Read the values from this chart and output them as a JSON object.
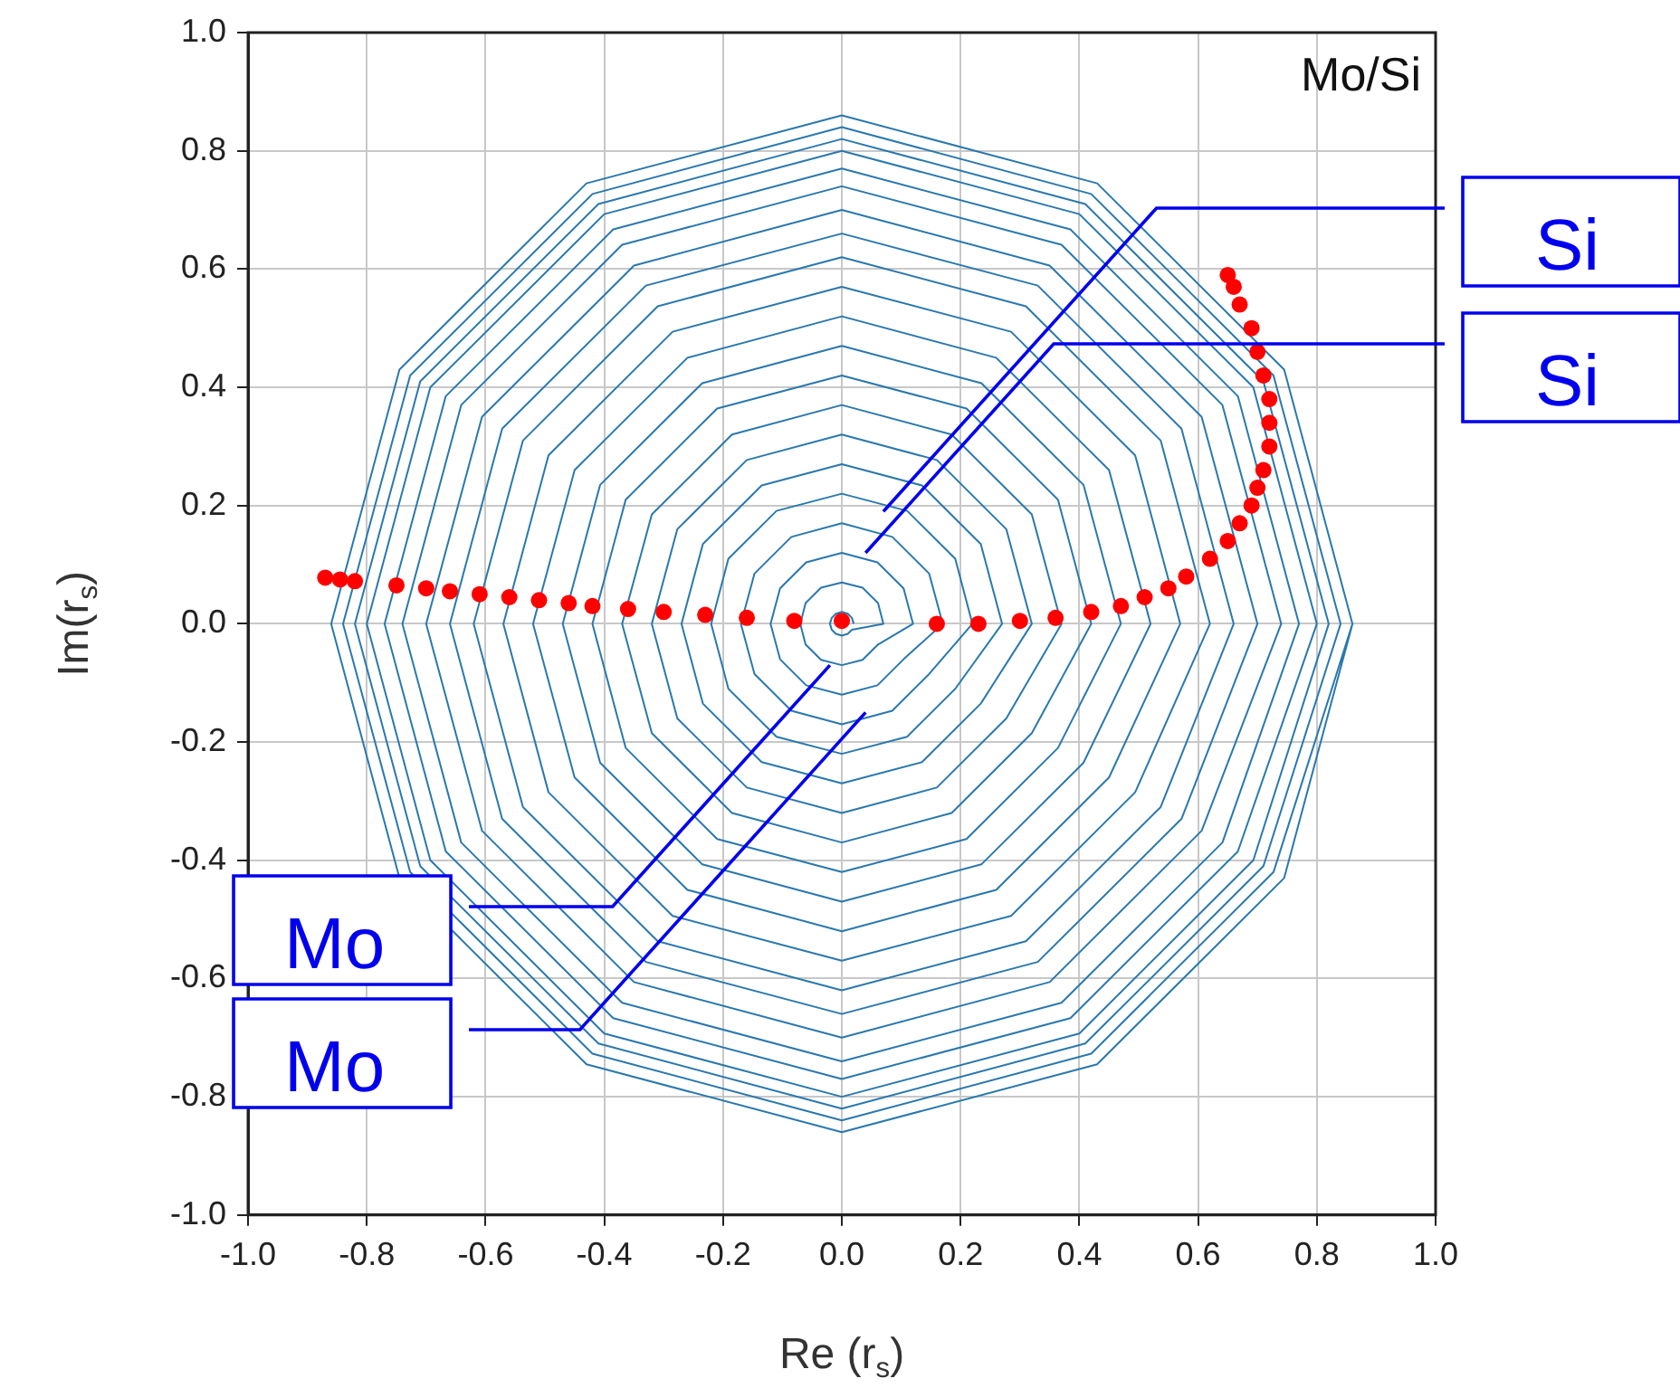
{
  "chart_data": {
    "type": "line",
    "xlabel": "Re (r$_{s}$)",
    "ylabel": "Im(r$_{s}$)",
    "xlim": [
      -1,
      1
    ],
    "ylim": [
      -1,
      1
    ],
    "xticks": [
      {
        "value": -1,
        "label": "-1.0"
      },
      -0.8,
      -0.6,
      -0.4,
      -0.2,
      {
        "value": 0,
        "label": "0.0"
      },
      0.2,
      0.4,
      0.6,
      0.8,
      {
        "value": 1,
        "label": "1.0"
      }
    ],
    "yticks": [
      {
        "value": -1,
        "label": "-1.0"
      },
      -0.8,
      -0.6,
      -0.4,
      -0.2,
      {
        "value": 0,
        "label": "0.0"
      },
      0.2,
      0.4,
      0.6,
      0.8,
      {
        "value": 1,
        "label": "1.0"
      }
    ],
    "grid": true,
    "legend": false,
    "annotations": [
      "Mo/Si",
      {
        "text": "Si",
        "x": 0.07,
        "y": 0.19
      },
      {
        "text": "Si",
        "x": 0.04,
        "y": 0.12
      },
      {
        "text": "Mo",
        "x": -0.02,
        "y": -0.07
      },
      {
        "text": "Mo",
        "x": 0.04,
        "y": -0.15
      }
    ],
    "series": [
      {
        "color": "#2a78ad",
        "line_style": "solid",
        "marker": "none",
        "x": [
          0.02,
          0.017,
          0.01,
          0,
          -0.01,
          -0.017,
          -0.02,
          -0.017,
          -0.01,
          0,
          0.01,
          0.017,
          0.07,
          0.061,
          0.035,
          0,
          -0.035,
          -0.061,
          -0.07,
          -0.061,
          -0.035,
          0,
          0.035,
          0.061,
          0.12,
          0.104,
          0.06,
          0,
          -0.06,
          -0.104,
          -0.12,
          -0.104,
          -0.06,
          0,
          0.06,
          0.104,
          0.17,
          0.147,
          0.085,
          0,
          -0.085,
          -0.147,
          -0.17,
          -0.147,
          -0.085,
          0,
          0.085,
          0.147,
          0.22,
          0.191,
          0.11,
          0,
          -0.11,
          -0.191,
          -0.22,
          -0.191,
          -0.11,
          0,
          0.11,
          0.191,
          0.27,
          0.234,
          0.135,
          0,
          -0.135,
          -0.234,
          -0.27,
          -0.234,
          -0.135,
          0,
          0.135,
          0.234,
          0.32,
          0.277,
          0.16,
          0,
          -0.16,
          -0.277,
          -0.32,
          -0.277,
          -0.16,
          0,
          0.16,
          0.277,
          0.37,
          0.32,
          0.185,
          0,
          -0.185,
          -0.32,
          -0.37,
          -0.32,
          -0.185,
          0,
          0.185,
          0.32,
          0.42,
          0.364,
          0.21,
          0,
          -0.21,
          -0.364,
          -0.42,
          -0.364,
          -0.21,
          0,
          0.21,
          0.364,
          0.47,
          0.407,
          0.235,
          0,
          -0.235,
          -0.407,
          -0.47,
          -0.407,
          -0.235,
          0,
          0.235,
          0.407,
          0.52,
          0.45,
          0.26,
          0,
          -0.26,
          -0.45,
          -0.52,
          -0.45,
          -0.26,
          0,
          0.26,
          0.45,
          0.57,
          0.494,
          0.285,
          0,
          -0.285,
          -0.494,
          -0.57,
          -0.494,
          -0.285,
          0,
          0.285,
          0.494,
          0.62,
          0.537,
          0.31,
          0,
          -0.31,
          -0.537,
          -0.62,
          -0.537,
          -0.31,
          0,
          0.31,
          0.537,
          0.66,
          0.572,
          0.33,
          0,
          -0.33,
          -0.572,
          -0.66,
          -0.572,
          -0.33,
          0,
          0.33,
          0.572,
          0.7,
          0.606,
          0.35,
          0,
          -0.35,
          -0.606,
          -0.7,
          -0.606,
          -0.35,
          0,
          0.35,
          0.606,
          0.74,
          0.641,
          0.37,
          0,
          -0.37,
          -0.641,
          -0.74,
          -0.641,
          -0.37,
          0,
          0.37,
          0.641,
          0.77,
          0.667,
          0.385,
          0,
          -0.385,
          -0.667,
          -0.77,
          -0.667,
          -0.385,
          0,
          0.385,
          0.667,
          0.8,
          0.693,
          0.4,
          0,
          -0.4,
          -0.693,
          -0.8,
          -0.693,
          -0.4,
          0,
          0.4,
          0.693,
          0.82,
          0.71,
          0.41,
          0,
          -0.41,
          -0.71,
          -0.82,
          -0.71,
          -0.41,
          0,
          0.41,
          0.71,
          0.84,
          0.727,
          0.42,
          0,
          -0.42,
          -0.727,
          -0.84,
          -0.727,
          -0.42,
          0,
          0.42,
          0.727,
          0.86,
          0.745,
          0.43,
          0,
          -0.43,
          -0.745,
          -0.86,
          -0.745,
          -0.43,
          0,
          0.43,
          0.745,
          0.86
        ],
        "values": [
          0,
          0.01,
          0.017,
          0.02,
          0.017,
          0.01,
          0,
          -0.01,
          -0.017,
          -0.02,
          -0.017,
          -0.01,
          0,
          0.035,
          0.061,
          0.07,
          0.061,
          0.035,
          0,
          -0.035,
          -0.061,
          -0.07,
          -0.061,
          -0.035,
          0,
          0.06,
          0.104,
          0.12,
          0.104,
          0.06,
          0,
          -0.06,
          -0.104,
          -0.12,
          -0.104,
          -0.06,
          0,
          0.085,
          0.147,
          0.17,
          0.147,
          0.085,
          0,
          -0.085,
          -0.147,
          -0.17,
          -0.147,
          -0.085,
          0,
          0.11,
          0.191,
          0.22,
          0.191,
          0.11,
          0,
          -0.11,
          -0.191,
          -0.22,
          -0.191,
          -0.11,
          0,
          0.135,
          0.234,
          0.27,
          0.234,
          0.135,
          0,
          -0.135,
          -0.234,
          -0.27,
          -0.234,
          -0.135,
          0,
          0.16,
          0.277,
          0.32,
          0.277,
          0.16,
          0,
          -0.16,
          -0.277,
          -0.32,
          -0.277,
          -0.16,
          0,
          0.185,
          0.32,
          0.37,
          0.32,
          0.185,
          0,
          -0.185,
          -0.32,
          -0.37,
          -0.32,
          -0.185,
          0,
          0.21,
          0.364,
          0.42,
          0.364,
          0.21,
          0,
          -0.21,
          -0.364,
          -0.42,
          -0.364,
          -0.21,
          0,
          0.235,
          0.407,
          0.47,
          0.407,
          0.235,
          0,
          -0.235,
          -0.407,
          -0.47,
          -0.407,
          -0.235,
          0,
          0.26,
          0.45,
          0.52,
          0.45,
          0.26,
          0,
          -0.26,
          -0.45,
          -0.52,
          -0.45,
          -0.26,
          0,
          0.285,
          0.494,
          0.57,
          0.494,
          0.285,
          0,
          -0.285,
          -0.494,
          -0.57,
          -0.494,
          -0.285,
          0,
          0.31,
          0.537,
          0.62,
          0.537,
          0.31,
          0,
          -0.31,
          -0.537,
          -0.62,
          -0.537,
          -0.31,
          0,
          0.33,
          0.572,
          0.66,
          0.572,
          0.33,
          0,
          -0.33,
          -0.572,
          -0.66,
          -0.572,
          -0.33,
          0,
          0.35,
          0.606,
          0.7,
          0.606,
          0.35,
          0,
          -0.35,
          -0.606,
          -0.7,
          -0.606,
          -0.35,
          0,
          0.37,
          0.641,
          0.74,
          0.641,
          0.37,
          0,
          -0.37,
          -0.641,
          -0.74,
          -0.641,
          -0.37,
          0,
          0.385,
          0.667,
          0.77,
          0.667,
          0.385,
          0,
          -0.385,
          -0.667,
          -0.77,
          -0.667,
          -0.385,
          0,
          0.4,
          0.693,
          0.8,
          0.693,
          0.4,
          0,
          -0.4,
          -0.693,
          -0.8,
          -0.693,
          -0.4,
          0,
          0.41,
          0.71,
          0.82,
          0.71,
          0.41,
          0,
          -0.41,
          -0.71,
          -0.82,
          -0.71,
          -0.41,
          0,
          0.42,
          0.727,
          0.84,
          0.727,
          0.42,
          0,
          -0.42,
          -0.727,
          -0.84,
          -0.727,
          -0.42,
          0,
          0.43,
          0.745,
          0.86,
          0.745,
          0.43,
          0,
          -0.43,
          -0.745,
          -0.86,
          -0.745,
          -0.43,
          0
        ]
      },
      {
        "type": "scatter",
        "color": "#ff0000",
        "marker": "circle",
        "x": [
          -0.87,
          -0.845,
          -0.82,
          -0.75,
          -0.7,
          -0.66,
          -0.61,
          -0.56,
          -0.51,
          -0.46,
          -0.42,
          -0.36,
          -0.3,
          -0.23,
          -0.16,
          -0.08,
          0.0,
          0.16,
          0.23,
          0.3,
          0.36,
          0.42,
          0.47,
          0.51,
          0.55,
          0.58,
          0.62,
          0.65,
          0.67,
          0.69,
          0.7,
          0.71,
          0.72,
          0.72,
          0.72,
          0.71,
          0.7,
          0.69,
          0.67,
          0.66,
          0.65
        ],
        "values": [
          0.078,
          0.075,
          0.072,
          0.065,
          0.06,
          0.055,
          0.05,
          0.045,
          0.04,
          0.035,
          0.03,
          0.025,
          0.02,
          0.015,
          0.01,
          0.005,
          0.005,
          0.0,
          0.0,
          0.005,
          0.01,
          0.02,
          0.03,
          0.045,
          0.06,
          0.08,
          0.11,
          0.14,
          0.17,
          0.2,
          0.23,
          0.26,
          0.3,
          0.34,
          0.38,
          0.42,
          0.46,
          0.5,
          0.54,
          0.57,
          0.59
        ]
      }
    ]
  }
}
